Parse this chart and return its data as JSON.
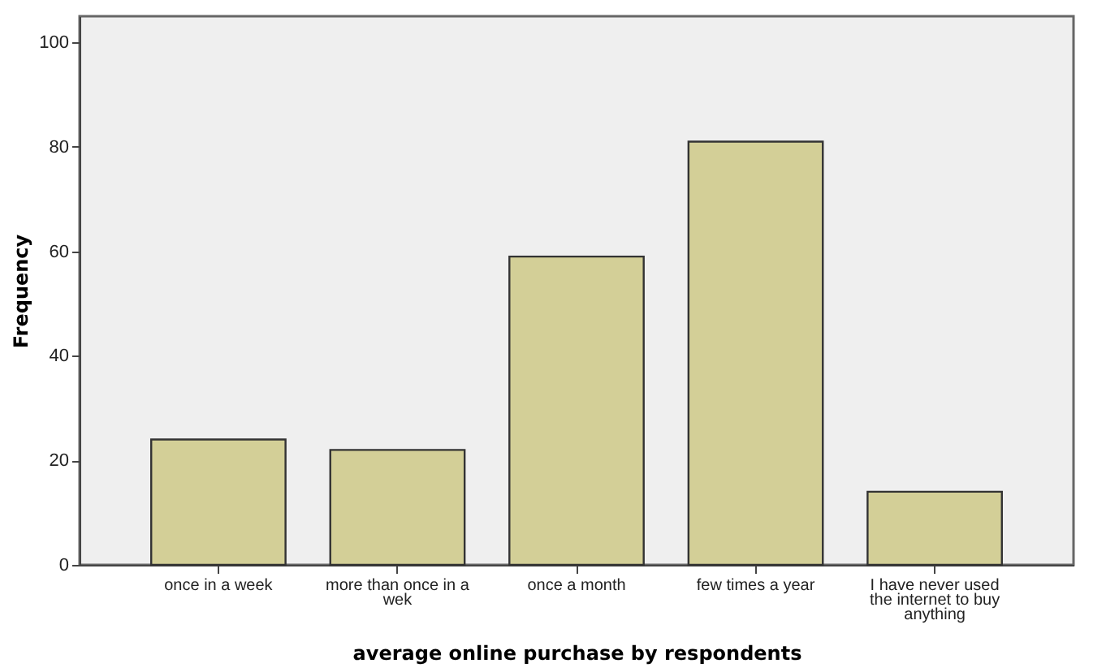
{
  "chart_data": {
    "type": "bar",
    "xlabel": "average online purchase by respondents",
    "ylabel": "Frequency",
    "categories": [
      "once in a week",
      "more than once in a wek",
      "once a month",
      "few times a year",
      "I have never used the internet to buy anything"
    ],
    "values": [
      24,
      22,
      59,
      81,
      14
    ],
    "color": "#d3cf97",
    "ylim": [
      0,
      105
    ],
    "yticks": [
      0,
      20,
      40,
      60,
      80,
      100
    ],
    "grid": false
  }
}
